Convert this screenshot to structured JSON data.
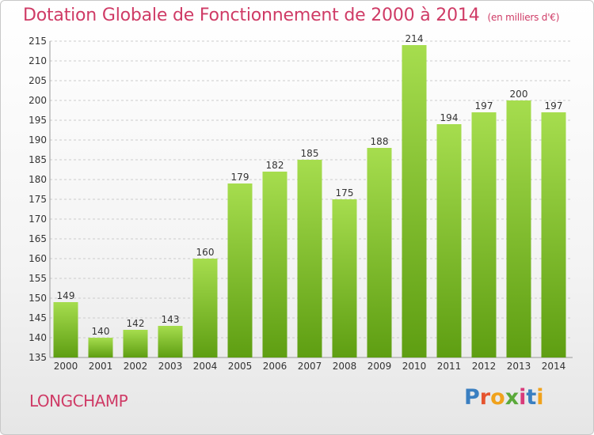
{
  "header": {
    "title": "Dotation Globale de Fonctionnement de 2000 à 2014",
    "unit": "(en milliers d'€)"
  },
  "footer": {
    "town": "LONGCHAMP",
    "logo_letters": [
      "P",
      "r",
      "o",
      "x",
      "i",
      "t",
      "i"
    ],
    "logo_colors": [
      "#3a7fc1",
      "#e5542f",
      "#f0a21c",
      "#5aa93a",
      "#d93a7a",
      "#3a7fc1",
      "#f0a21c"
    ]
  },
  "colors": {
    "bar_light": "#a6dd4e",
    "bar_dark": "#5e9e12",
    "grid": "#cccccc",
    "title": "#cf3b66"
  },
  "chart_data": {
    "type": "bar",
    "categories": [
      "2000",
      "2001",
      "2002",
      "2003",
      "2004",
      "2005",
      "2006",
      "2007",
      "2008",
      "2009",
      "2010",
      "2011",
      "2012",
      "2013",
      "2014"
    ],
    "values": [
      149,
      140,
      142,
      143,
      160,
      179,
      182,
      185,
      175,
      188,
      214,
      194,
      197,
      200,
      197
    ],
    "ylim": [
      135,
      215
    ],
    "yticks": [
      135,
      140,
      145,
      150,
      155,
      160,
      165,
      170,
      175,
      180,
      185,
      190,
      195,
      200,
      205,
      210,
      215
    ],
    "grid": true
  }
}
